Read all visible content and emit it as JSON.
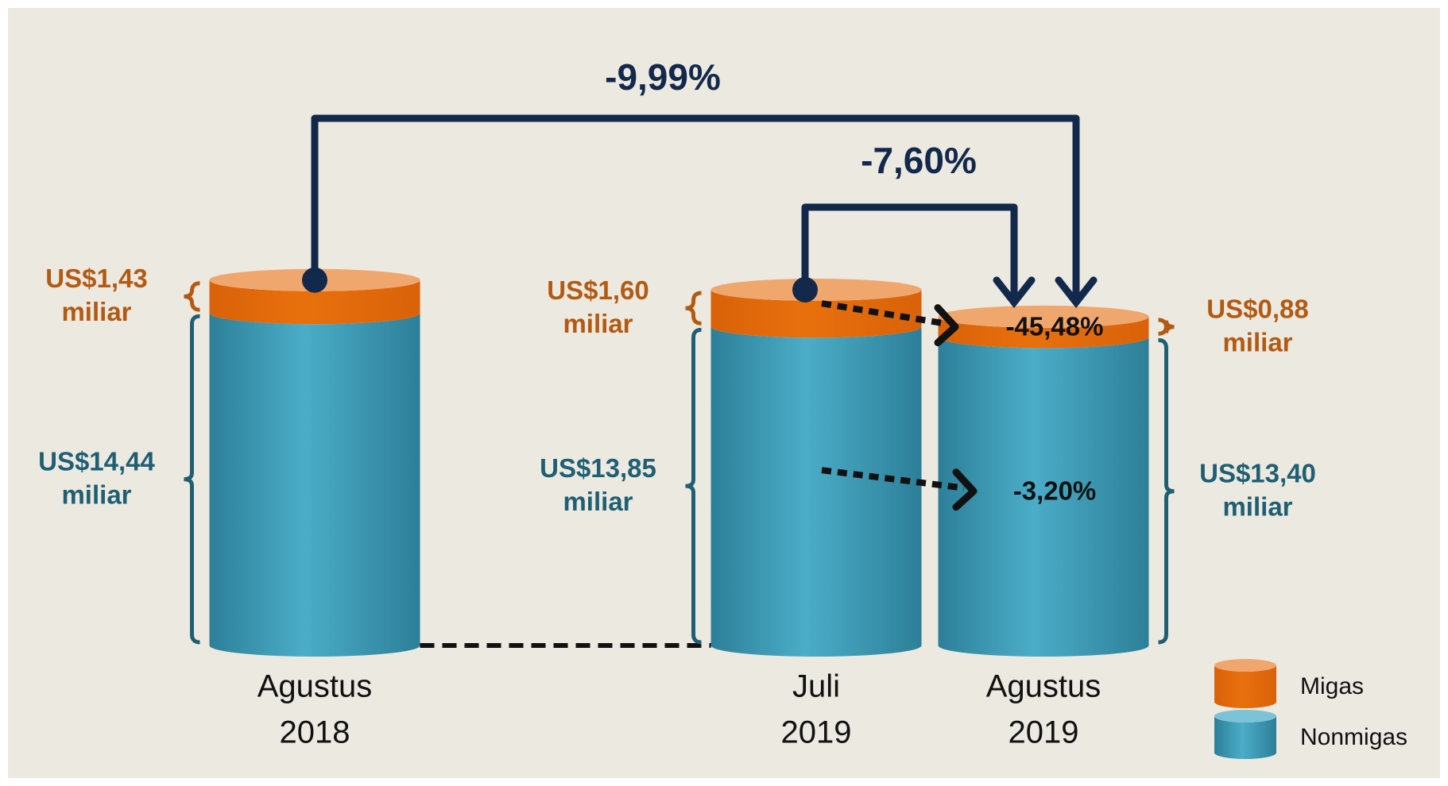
{
  "chart_data": {
    "type": "cylinder_stacked",
    "categories": [
      [
        "Agustus",
        "2018"
      ],
      [
        "Juli",
        "2019"
      ],
      [
        "Agustus",
        "2019"
      ]
    ],
    "value_unit": "miliar",
    "series": [
      {
        "name": "Nonmigas",
        "color": "#3d9fbb",
        "label_color": "#1f5f73",
        "values": [
          14.44,
          13.85,
          13.4
        ],
        "value_labels": [
          "US$14,44",
          "US$13,85",
          "US$13,40"
        ]
      },
      {
        "name": "Migas",
        "color": "#e46c0a",
        "label_color": "#b35a12",
        "values": [
          1.43,
          1.6,
          0.88
        ],
        "value_labels": [
          "US$1,43",
          "US$1,60",
          "US$0,88"
        ]
      }
    ],
    "change_yoy": "-9,99%",
    "change_mom": "-7,60%",
    "migas_change": "-45,48%",
    "nonmigas_change": "-3,20%"
  }
}
